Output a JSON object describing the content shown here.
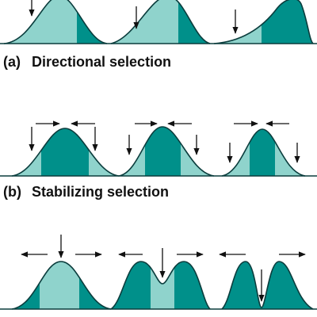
{
  "panels": [
    {
      "label": "(a)",
      "title": "Directional selection"
    },
    {
      "label": "(b)",
      "title": "Stabilizing selection"
    }
  ]
}
